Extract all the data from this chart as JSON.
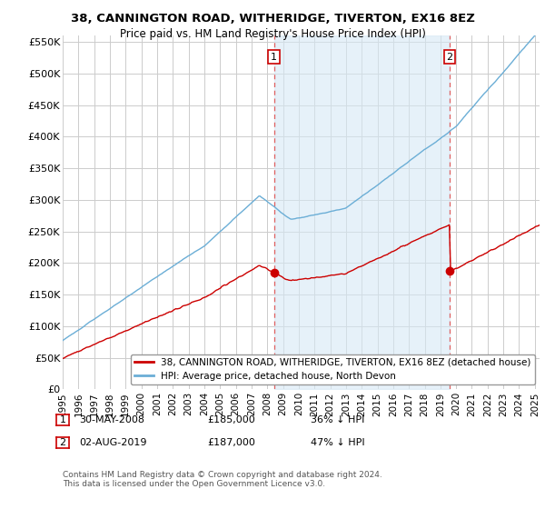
{
  "title": "38, CANNINGTON ROAD, WITHERIDGE, TIVERTON, EX16 8EZ",
  "subtitle": "Price paid vs. HM Land Registry's House Price Index (HPI)",
  "ylim": [
    0,
    560000
  ],
  "xlim_start": 1995.25,
  "xlim_end": 2025.3,
  "hpi_color": "#6baed6",
  "hpi_fill_color": "#d6e8f5",
  "price_color": "#cc0000",
  "vline_color": "#e06060",
  "grid_color": "#cccccc",
  "background_color": "#ffffff",
  "legend_entries": [
    "38, CANNINGTON ROAD, WITHERIDGE, TIVERTON, EX16 8EZ (detached house)",
    "HPI: Average price, detached house, North Devon"
  ],
  "annotation1": {
    "label": "1",
    "date": "30-MAY-2008",
    "price": "£185,000",
    "pct": "36% ↓ HPI",
    "x": 2008.42
  },
  "annotation2": {
    "label": "2",
    "date": "02-AUG-2019",
    "price": "£187,000",
    "pct": "47% ↓ HPI",
    "x": 2019.58
  },
  "sale1_price": 185000,
  "sale2_price": 187000,
  "footnote": "Contains HM Land Registry data © Crown copyright and database right 2024.\nThis data is licensed under the Open Government Licence v3.0."
}
